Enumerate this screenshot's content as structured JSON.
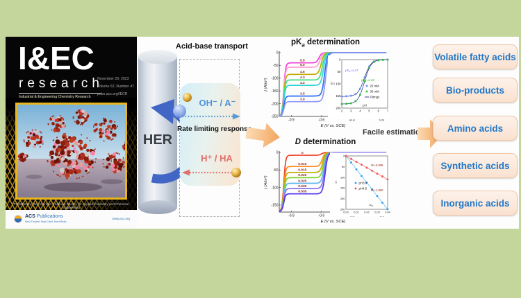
{
  "cover": {
    "title": "I&EC",
    "subtitle": "research",
    "tagline": "Industrial & Engineering Chemistry Research",
    "issue": {
      "date": "November 29, 2023",
      "volume": "Volume 62, Number 47",
      "url": "pubs.acs.org/IECR"
    },
    "footer_text": "Published by the American Chemical Society for Applied Chemistry and Chemical Engineering",
    "publisher": {
      "name_bold": "ACS",
      "name_rest": " Publications",
      "tagline": "Most Trusted. Most Cited. Most Read.",
      "website": "www.acs.org"
    }
  },
  "diagram": {
    "electrode_label": "HER",
    "transport_title": "Acid-base transport",
    "base_species": "OH⁻ / A⁻",
    "acid_species": "H⁺ / HA",
    "response_label": "Rate limiting response",
    "estimation_label": "Facile estimation"
  },
  "acid_categories": [
    "Volatile fatty acids",
    "Bio-products",
    "Amino acids",
    "Synthetic acids",
    "Inorganic acids"
  ],
  "colors": {
    "background": "#c5d69c",
    "panel": "#fdfdfd",
    "box_fill": "#fae4d2",
    "box_text": "#2077c8",
    "base_blue": "#4f93d9",
    "acid_red": "#e0706a",
    "arrow_orange": "#f2a55f",
    "electrode_arrow_blue": "#4166c6"
  },
  "chart_data": [
    {
      "type": "line",
      "id": "pka-main",
      "title": {
        "pre": "pK",
        "sub": "a",
        "post": " determination"
      },
      "xlabel": "E (V vs. SCE)",
      "ylabel": "j (A/m²)",
      "xlim": [
        -1.02,
        0.05
      ],
      "ylim": [
        -250,
        0
      ],
      "xticks": [
        "-0.9",
        "-0.6",
        "-0.3",
        "0.0"
      ],
      "yticks": [
        0,
        -50,
        -100,
        -150,
        -200,
        -250
      ],
      "onset": -0.625,
      "dive": -0.975,
      "floor": -250,
      "series": [
        {
          "label": "5.5",
          "color": "#f23cd8",
          "limiting_current": -40
        },
        {
          "label": "5.0",
          "color": "#ff9ed4",
          "limiting_current": -57
        },
        {
          "label": "4.6",
          "color": "#bfae00",
          "limiting_current": -85
        },
        {
          "label": "4.3",
          "color": "#3fe07f",
          "limiting_current": -107
        },
        {
          "label": "4.0",
          "color": "#2fd4d4",
          "limiting_current": -128
        },
        {
          "label": "3.5",
          "color": "#2f6df2",
          "limiting_current": -170
        },
        {
          "label": "3.0",
          "color": "#8e97f5",
          "limiting_current": -192
        }
      ]
    },
    {
      "type": "scatter",
      "id": "pka-inset",
      "xlabel": "pH",
      "ylabel": {
        "pre": "j",
        "sub": "0.5"
      },
      "xlim": [
        2,
        7
      ],
      "ylim_inverted": [
        0,
        200
      ],
      "xticks": [
        2,
        3,
        4,
        5,
        6,
        7
      ],
      "yticks": [
        0,
        50,
        100,
        150,
        200
      ],
      "fit_color": "#27408b",
      "series": [
        {
          "name": "25 mM",
          "marker": "circle",
          "color": "#7b8df8",
          "pKa": 4.47,
          "max_current": 152,
          "pH": [
            2,
            2.5,
            3,
            3.5,
            4,
            4.5,
            5,
            5.5,
            6,
            6.5,
            7
          ],
          "j": [
            152,
            151,
            149,
            142,
            120,
            73,
            28,
            8,
            2,
            1,
            0
          ]
        },
        {
          "name": "30 mM",
          "marker": "square",
          "color": "#2fbf2f",
          "pKa": 4.48,
          "max_current": 183,
          "pH": [
            2,
            2.5,
            3,
            3.5,
            4,
            4.5,
            5,
            5.5,
            6,
            6.5,
            7
          ],
          "j": [
            183,
            182,
            180,
            171,
            145,
            89,
            34,
            10,
            3,
            1,
            0
          ]
        }
      ],
      "legend": [
        "25 mM",
        "30 mM",
        "Fittings"
      ],
      "annotations": [
        {
          "pre": "pK",
          "sub": "a",
          "post": "=4.47",
          "color": "#7b6bf0"
        },
        {
          "pre": "pK",
          "sub": "a",
          "post": "=4.48",
          "color": "#2fbf2f"
        }
      ]
    },
    {
      "type": "line",
      "id": "d-main",
      "title": {
        "pre": "D",
        "sub": "",
        "post": " determination"
      },
      "xlabel": "E (V vs. SCE)",
      "ylabel": "j (A/m²)",
      "xlim": [
        -1.02,
        0.05
      ],
      "ylim": [
        -170,
        0
      ],
      "xticks": [
        "-0.9",
        "-0.6",
        "-0.3",
        "0.0"
      ],
      "yticks": [
        0,
        -50,
        -100,
        -150
      ],
      "onset": -0.6,
      "dive": -0.975,
      "floor": -168,
      "series": [
        {
          "label": "0",
          "color": "#f0402a",
          "limiting_current": -8
        },
        {
          "label": "0.010",
          "color": "#ff8c1f",
          "limiting_current": -40
        },
        {
          "label": "0.015",
          "color": "#c2ae00",
          "limiting_current": -57
        },
        {
          "label": "0.020",
          "color": "#7ed32a",
          "limiting_current": -72
        },
        {
          "label": "0.025",
          "color": "#5fb8f0",
          "limiting_current": -88
        },
        {
          "label": "0.030",
          "color": "#8a70ee",
          "limiting_current": -103
        },
        {
          "label": "0.035",
          "color": "#5436ee",
          "limiting_current": -118
        }
      ]
    },
    {
      "type": "scatter",
      "id": "d-inset",
      "xlabel": {
        "pre": "C",
        "sub": "b"
      },
      "ylabel": {
        "pre": "j",
        "sub": "l"
      },
      "xlim": [
        0,
        0.04
      ],
      "ylim_inverted": [
        0,
        250
      ],
      "xticks": [
        "0.00",
        "0.01",
        "0.02",
        "0.03",
        "0.04"
      ],
      "yticks": [
        0,
        50,
        100,
        150,
        200,
        250
      ],
      "annotation_color": "#8b2015",
      "series": [
        {
          "name": "pH3.0",
          "marker": "square",
          "color": "#2e9bf0",
          "line_color": "#69c8f5",
          "r_squared": "R²=1.000",
          "x": [
            0,
            0.005,
            0.01,
            0.015,
            0.02,
            0.025,
            0.03,
            0.035,
            0.04
          ],
          "y": [
            0,
            31,
            63,
            94,
            125,
            156,
            188,
            219,
            250
          ]
        },
        {
          "name": "pH4.5",
          "marker": "diamond",
          "color": "#f05a5a",
          "line_color": "#f08080",
          "r_squared": "R²=0.999",
          "x": [
            0,
            0.005,
            0.01,
            0.015,
            0.02,
            0.025,
            0.03,
            0.035,
            0.04
          ],
          "y": [
            0,
            14,
            28,
            41,
            55,
            69,
            83,
            96,
            110
          ]
        }
      ]
    }
  ]
}
